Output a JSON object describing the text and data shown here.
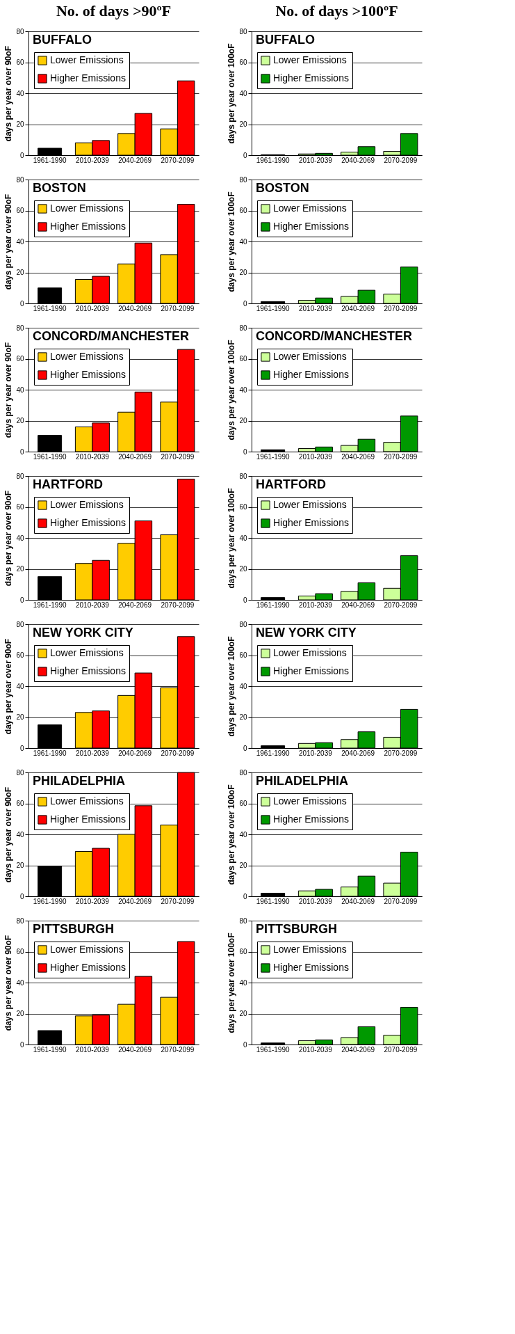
{
  "chart_data": [
    {
      "type": "bar",
      "title": "BUFFALO",
      "annotations": [
        "No. of days >90ºF"
      ],
      "ylabel": "days per year over 90oF",
      "categories": [
        "1961-1990",
        "2010-2039",
        "2040-2069",
        "2070-2099"
      ],
      "series": [
        {
          "color": "#000000",
          "values": [
            4.5,
            null,
            null,
            null
          ]
        },
        {
          "name": "Lower Emissions",
          "color": "#ffcc00",
          "values": [
            null,
            8,
            14,
            17
          ]
        },
        {
          "name": "Higher Emissions",
          "color": "#ff0000",
          "values": [
            null,
            9.5,
            27,
            48
          ]
        }
      ],
      "ylim": [
        0,
        80
      ],
      "yticks": [
        0,
        20,
        40,
        60,
        80
      ],
      "grid": "y",
      "legend": "top left"
    },
    {
      "type": "bar",
      "title": "BUFFALO",
      "annotations": [
        "No. of days >100ºF"
      ],
      "ylabel": "days per year over 100oF",
      "categories": [
        "1961-1990",
        "2010-2039",
        "2040-2069",
        "2070-2099"
      ],
      "series": [
        {
          "color": "#000000",
          "values": [
            0.3,
            null,
            null,
            null
          ]
        },
        {
          "name": "Lower Emissions",
          "color": "#ccff99",
          "values": [
            null,
            0.8,
            2,
            2.5
          ]
        },
        {
          "name": "Higher Emissions",
          "color": "#009900",
          "values": [
            null,
            1.2,
            5.5,
            14
          ]
        }
      ],
      "ylim": [
        0,
        80
      ],
      "yticks": [
        0,
        20,
        40,
        60,
        80
      ],
      "grid": "y",
      "legend": "top left"
    },
    {
      "type": "bar",
      "title": "BOSTON",
      "ylabel": "days per year over 90oF",
      "categories": [
        "1961-1990",
        "2010-2039",
        "2040-2069",
        "2070-2099"
      ],
      "series": [
        {
          "color": "#000000",
          "values": [
            10,
            null,
            null,
            null
          ]
        },
        {
          "name": "Lower Emissions",
          "color": "#ffcc00",
          "values": [
            null,
            15.5,
            25.5,
            31.5
          ]
        },
        {
          "name": "Higher Emissions",
          "color": "#ff0000",
          "values": [
            null,
            17.5,
            39,
            64
          ]
        }
      ],
      "ylim": [
        0,
        80
      ],
      "yticks": [
        0,
        20,
        40,
        60,
        80
      ],
      "grid": "y",
      "legend": "top left"
    },
    {
      "type": "bar",
      "title": "BOSTON",
      "ylabel": "days per year over 100oF",
      "categories": [
        "1961-1990",
        "2010-2039",
        "2040-2069",
        "2070-2099"
      ],
      "series": [
        {
          "color": "#000000",
          "values": [
            1.2,
            null,
            null,
            null
          ]
        },
        {
          "name": "Lower Emissions",
          "color": "#ccff99",
          "values": [
            null,
            2,
            4.5,
            6
          ]
        },
        {
          "name": "Higher Emissions",
          "color": "#009900",
          "values": [
            null,
            3.5,
            8.5,
            23.5
          ]
        }
      ],
      "ylim": [
        0,
        80
      ],
      "yticks": [
        0,
        20,
        40,
        60,
        80
      ],
      "grid": "y",
      "legend": "top left"
    },
    {
      "type": "bar",
      "title": "CONCORD/MANCHESTER",
      "ylabel": "days per year over 90oF",
      "categories": [
        "1961-1990",
        "2010-2039",
        "2040-2069",
        "2070-2099"
      ],
      "series": [
        {
          "color": "#000000",
          "values": [
            10.5,
            null,
            null,
            null
          ]
        },
        {
          "name": "Lower Emissions",
          "color": "#ffcc00",
          "values": [
            null,
            16,
            25.5,
            32
          ]
        },
        {
          "name": "Higher Emissions",
          "color": "#ff0000",
          "values": [
            null,
            18.5,
            38.5,
            66
          ]
        }
      ],
      "ylim": [
        0,
        80
      ],
      "yticks": [
        0,
        20,
        40,
        60,
        80
      ],
      "grid": "y",
      "legend": "top left"
    },
    {
      "type": "bar",
      "title": "CONCORD/MANCHESTER",
      "ylabel": "days per year over 100oF",
      "categories": [
        "1961-1990",
        "2010-2039",
        "2040-2069",
        "2070-2099"
      ],
      "series": [
        {
          "color": "#000000",
          "values": [
            1.2,
            null,
            null,
            null
          ]
        },
        {
          "name": "Lower Emissions",
          "color": "#ccff99",
          "values": [
            null,
            2,
            4,
            6
          ]
        },
        {
          "name": "Higher Emissions",
          "color": "#009900",
          "values": [
            null,
            3,
            8,
            23
          ]
        }
      ],
      "ylim": [
        0,
        80
      ],
      "yticks": [
        0,
        20,
        40,
        60,
        80
      ],
      "grid": "y",
      "legend": "top left"
    },
    {
      "type": "bar",
      "title": "HARTFORD",
      "ylabel": "days per year over 90oF",
      "categories": [
        "1961-1990",
        "2010-2039",
        "2040-2069",
        "2070-2099"
      ],
      "series": [
        {
          "color": "#000000",
          "values": [
            15,
            null,
            null,
            null
          ]
        },
        {
          "name": "Lower Emissions",
          "color": "#ffcc00",
          "values": [
            null,
            23.5,
            36.5,
            42
          ]
        },
        {
          "name": "Higher Emissions",
          "color": "#ff0000",
          "values": [
            null,
            25.5,
            51,
            78
          ]
        }
      ],
      "ylim": [
        0,
        80
      ],
      "yticks": [
        0,
        20,
        40,
        60,
        80
      ],
      "grid": "y",
      "legend": "top left"
    },
    {
      "type": "bar",
      "title": "HARTFORD",
      "ylabel": "days per year over 100oF",
      "categories": [
        "1961-1990",
        "2010-2039",
        "2040-2069",
        "2070-2099"
      ],
      "series": [
        {
          "color": "#000000",
          "values": [
            1.5,
            null,
            null,
            null
          ]
        },
        {
          "name": "Lower Emissions",
          "color": "#ccff99",
          "values": [
            null,
            2.5,
            5.5,
            7.5
          ]
        },
        {
          "name": "Higher Emissions",
          "color": "#009900",
          "values": [
            null,
            4,
            11,
            28.5
          ]
        }
      ],
      "ylim": [
        0,
        80
      ],
      "yticks": [
        0,
        20,
        40,
        60,
        80
      ],
      "grid": "y",
      "legend": "top left"
    },
    {
      "type": "bar",
      "title": "NEW YORK CITY",
      "ylabel": "days per year over 90oF",
      "categories": [
        "1961-1990",
        "2010-2039",
        "2040-2069",
        "2070-2099"
      ],
      "series": [
        {
          "color": "#000000",
          "values": [
            15,
            null,
            null,
            null
          ]
        },
        {
          "name": "Lower Emissions",
          "color": "#ffcc00",
          "values": [
            null,
            23,
            34,
            39
          ]
        },
        {
          "name": "Higher Emissions",
          "color": "#ff0000",
          "values": [
            null,
            24,
            48.5,
            72
          ]
        }
      ],
      "ylim": [
        0,
        80
      ],
      "yticks": [
        0,
        20,
        40,
        60,
        80
      ],
      "grid": "y",
      "legend": "top left"
    },
    {
      "type": "bar",
      "title": "NEW YORK CITY",
      "ylabel": "days per year over 100oF",
      "categories": [
        "1961-1990",
        "2010-2039",
        "2040-2069",
        "2070-2099"
      ],
      "series": [
        {
          "color": "#000000",
          "values": [
            1.5,
            null,
            null,
            null
          ]
        },
        {
          "name": "Lower Emissions",
          "color": "#ccff99",
          "values": [
            null,
            3,
            5.5,
            7
          ]
        },
        {
          "name": "Higher Emissions",
          "color": "#009900",
          "values": [
            null,
            3.5,
            10.5,
            25
          ]
        }
      ],
      "ylim": [
        0,
        80
      ],
      "yticks": [
        0,
        20,
        40,
        60,
        80
      ],
      "grid": "y",
      "legend": "top left"
    },
    {
      "type": "bar",
      "title": "PHILADELPHIA",
      "ylabel": "days per year over 90oF",
      "categories": [
        "1961-1990",
        "2010-2039",
        "2040-2069",
        "2070-2099"
      ],
      "series": [
        {
          "color": "#000000",
          "values": [
            19.5,
            null,
            null,
            null
          ]
        },
        {
          "name": "Lower Emissions",
          "color": "#ffcc00",
          "values": [
            null,
            29,
            40,
            46
          ]
        },
        {
          "name": "Higher Emissions",
          "color": "#ff0000",
          "values": [
            null,
            31,
            58.5,
            80
          ]
        }
      ],
      "ylim": [
        0,
        80
      ],
      "yticks": [
        0,
        20,
        40,
        60,
        80
      ],
      "grid": "y",
      "legend": "top left"
    },
    {
      "type": "bar",
      "title": "PHILADELPHIA",
      "ylabel": "days per year over 100oF",
      "categories": [
        "1961-1990",
        "2010-2039",
        "2040-2069",
        "2070-2099"
      ],
      "series": [
        {
          "color": "#000000",
          "values": [
            2,
            null,
            null,
            null
          ]
        },
        {
          "name": "Lower Emissions",
          "color": "#ccff99",
          "values": [
            null,
            3.5,
            6,
            8.5
          ]
        },
        {
          "name": "Higher Emissions",
          "color": "#009900",
          "values": [
            null,
            4.5,
            13,
            28.5
          ]
        }
      ],
      "ylim": [
        0,
        80
      ],
      "yticks": [
        0,
        20,
        40,
        60,
        80
      ],
      "grid": "y",
      "legend": "top left"
    },
    {
      "type": "bar",
      "title": "PITTSBURGH",
      "ylabel": "days per year over 90oF",
      "categories": [
        "1961-1990",
        "2010-2039",
        "2040-2069",
        "2070-2099"
      ],
      "series": [
        {
          "color": "#000000",
          "values": [
            9,
            null,
            null,
            null
          ]
        },
        {
          "name": "Lower Emissions",
          "color": "#ffcc00",
          "values": [
            null,
            18.5,
            26,
            30.5
          ]
        },
        {
          "name": "Higher Emissions",
          "color": "#ff0000",
          "values": [
            null,
            19,
            44,
            66.5
          ]
        }
      ],
      "ylim": [
        0,
        80
      ],
      "yticks": [
        0,
        20,
        40,
        60,
        80
      ],
      "grid": "y",
      "legend": "top left"
    },
    {
      "type": "bar",
      "title": "PITTSBURGH",
      "ylabel": "days per year over 100oF",
      "categories": [
        "1961-1990",
        "2010-2039",
        "2040-2069",
        "2070-2099"
      ],
      "series": [
        {
          "color": "#000000",
          "values": [
            1,
            null,
            null,
            null
          ]
        },
        {
          "name": "Lower Emissions",
          "color": "#ccff99",
          "values": [
            null,
            2.5,
            4.5,
            6
          ]
        },
        {
          "name": "Higher Emissions",
          "color": "#009900",
          "values": [
            null,
            3,
            11.5,
            24
          ]
        }
      ],
      "ylim": [
        0,
        80
      ],
      "yticks": [
        0,
        20,
        40,
        60,
        80
      ],
      "grid": "y",
      "legend": "top left"
    }
  ]
}
